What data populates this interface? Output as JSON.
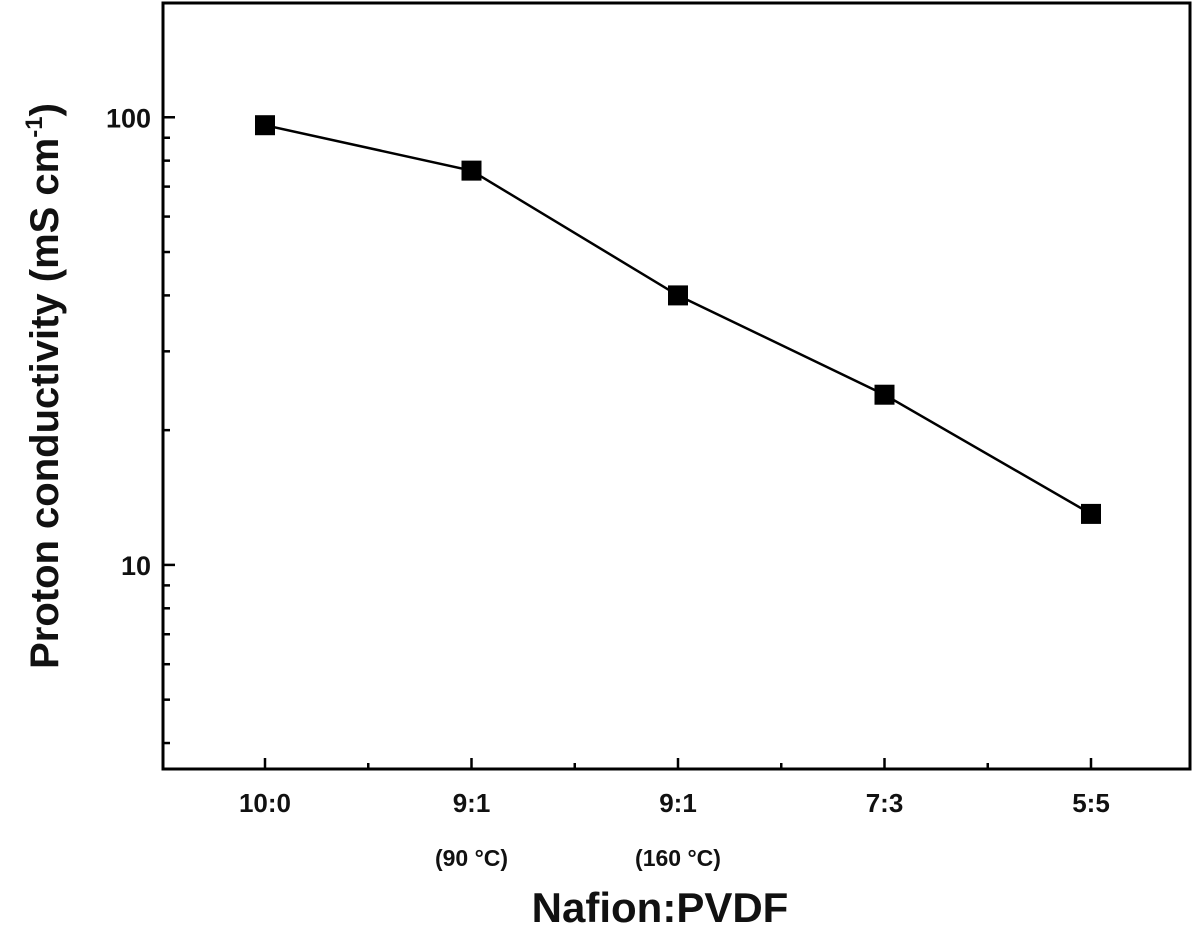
{
  "chart_data": {
    "type": "line",
    "xlabel": "Nafion:PVDF",
    "ylabel": "Proton conductivity (mS cm",
    "ylabel_sup": "-1",
    "ylabel_close": ")",
    "yscale": "log",
    "ylim": [
      3.5,
      180
    ],
    "yticks": [
      10,
      100
    ],
    "ytick_labels": [
      "10",
      "100"
    ],
    "categories": [
      {
        "label": "10:0",
        "sub": ""
      },
      {
        "label": "9:1",
        "sub": "(90 °C)"
      },
      {
        "label": "9:1",
        "sub": "(160 °C)"
      },
      {
        "label": "7:3",
        "sub": ""
      },
      {
        "label": "5:5",
        "sub": ""
      }
    ],
    "series": [
      {
        "values": [
          96,
          76,
          40,
          24,
          13
        ],
        "marker": "square",
        "color": "#000000"
      }
    ],
    "grid": false
  }
}
